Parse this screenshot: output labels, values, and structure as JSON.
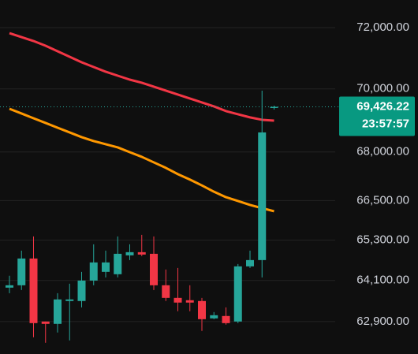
{
  "chart_data": {
    "type": "candlestick",
    "log_scale": true,
    "grid": true,
    "ylim": [
      61970,
      72920
    ],
    "yticks": [
      {
        "value": 72000,
        "label": "72,000.00"
      },
      {
        "value": 70000,
        "label": "70,000.00"
      },
      {
        "value": 68000,
        "label": "68,000.00"
      },
      {
        "value": 66500,
        "label": "66,500.00"
      },
      {
        "value": 65300,
        "label": "65,300.00"
      },
      {
        "value": 64100,
        "label": "64,100.00"
      },
      {
        "value": 62900,
        "label": "62,900.00"
      }
    ],
    "up_color": "#26a69a",
    "down_color": "#f23645",
    "open": [
      63889,
      63959,
      64751,
      62902,
      62834,
      63498,
      63498,
      64098,
      64354,
      64284,
      64845,
      64939,
      64891,
      63959,
      63589,
      63521,
      63498,
      62993,
      63062,
      62902,
      64517,
      64704,
      69414
    ],
    "high": [
      64238,
      64985,
      65411,
      62902,
      63727,
      64005,
      64354,
      65174,
      64985,
      65411,
      65174,
      65458,
      65411,
      64424,
      64470,
      63959,
      63589,
      63176,
      63313,
      64587,
      64985,
      69944,
      69464
    ],
    "low": [
      63727,
      63820,
      62448,
      62290,
      62584,
      62358,
      63313,
      63959,
      64191,
      64191,
      64704,
      64822,
      63820,
      63498,
      63199,
      63199,
      62629,
      62970,
      62811,
      62856,
      64470,
      64191,
      69338
    ],
    "close": [
      63959,
      64751,
      62856,
      62834,
      63544,
      63544,
      64098,
      64634,
      64634,
      64891,
      64939,
      64868,
      63959,
      63589,
      63452,
      63452,
      62970,
      63084,
      62856,
      64517,
      64704,
      68614,
      69426.22
    ],
    "lines": [
      {
        "color": "#f23645",
        "values": [
          71818,
          71688,
          71558,
          71403,
          71222,
          71042,
          70862,
          70708,
          70555,
          70427,
          70299,
          70198,
          70071,
          69944,
          69818,
          69692,
          69566,
          69440,
          69290,
          69190,
          69090,
          69013,
          68988
        ]
      },
      {
        "color": "#ff9800",
        "values": [
          69363,
          69214,
          69063,
          68914,
          68763,
          68614,
          68465,
          68341,
          68243,
          68144,
          67995,
          67848,
          67676,
          67505,
          67311,
          67143,
          66962,
          66769,
          66602,
          66486,
          66365,
          66267,
          66173
        ]
      }
    ],
    "last_price": {
      "value": 69426.22,
      "label": "69,426.22"
    },
    "countdown": "23:57:57",
    "price_label_color": "#089981"
  }
}
